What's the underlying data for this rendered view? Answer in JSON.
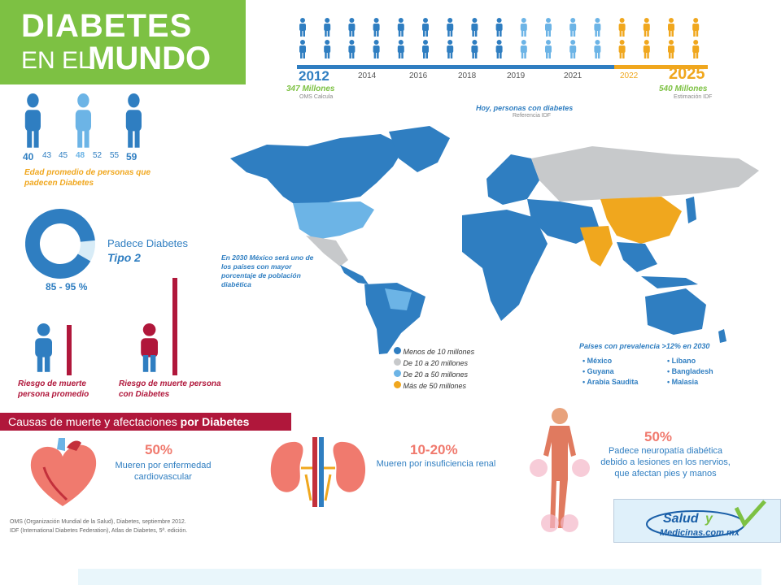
{
  "title": {
    "line1": "DIABETES",
    "line2a": "EN EL",
    "line2b": "MUNDO"
  },
  "timeline": {
    "years": [
      "2012",
      "2014",
      "2016",
      "2018",
      "2019",
      "2021",
      "2022",
      "2025"
    ],
    "start_value": "347 Millones",
    "start_source": "OMS Calcula",
    "end_value": "540 Millones",
    "end_source": "Estimación IDF"
  },
  "ages": {
    "values": [
      "40",
      "43",
      "45",
      "48",
      "52",
      "55",
      "59"
    ],
    "caption": "Edad promedio de personas que padecen Diabetes"
  },
  "type2": {
    "label": "Padece Diabetes",
    "type": "Tipo 2",
    "range": "85 - 95 %",
    "share": 0.9
  },
  "risk": {
    "average": "Riesgo de muerte persona promedio",
    "diabetic": "Riesgo de muerte persona con Diabetes"
  },
  "map": {
    "heading": "Hoy, personas con diabetes",
    "heading_ref": "Referencia IDF",
    "mexico_note": "En 2030 México será uno de los países con mayor porcentaje de población diabética",
    "legend": [
      {
        "label": "Menos de 10 millones",
        "color": "#2f7ec1"
      },
      {
        "label": "De 10 a 20 millones",
        "color": "#c7c9cb"
      },
      {
        "label": "De 20 a 50 millones",
        "color": "#6cb4e6"
      },
      {
        "label": "Más de 50 millones",
        "color": "#f0a71e"
      }
    ],
    "prevalence_title": "Países con prevalencia >12% en 2030",
    "countries_left": [
      "México",
      "Guyana",
      "Arabia Saudita"
    ],
    "countries_right": [
      "Líbano",
      "Bangladesh",
      "Malasia"
    ]
  },
  "causes": {
    "header_a": "Causas de muerte y afectaciones ",
    "header_b": "por Diabetes",
    "heart_pct": "50%",
    "heart_text": "Mueren por enfermedad cardiovascular",
    "kidney_pct": "10-20%",
    "kidney_text": "Mueren por insuficiencia renal",
    "nerve_pct": "50%",
    "nerve_text": "Padece neuropatía diabética debido a lesiones en los nervios, que afectan pies y manos"
  },
  "sources": {
    "line1": "OMS (Organización Mundial de la Salud), Diabetes, septiembre 2012.",
    "line2": "IDF (International Diabetes Federation), Atlas de Diabetes, 5ª. edición."
  },
  "logo": {
    "text": "Salud y Medicinas.com.mx"
  }
}
